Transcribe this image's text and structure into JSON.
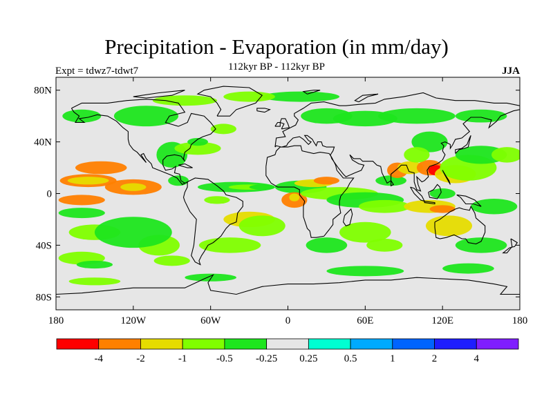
{
  "header": {
    "title": "Precipitation - Evaporation (in mm/day)",
    "subtitle": "112kyr BP - 112kyr BP",
    "left_label": "Expt = tdwz7-tdwt7",
    "right_label": "JJA"
  },
  "map": {
    "projection": "cylindrical-equidistant",
    "lon_range": [
      -180,
      180
    ],
    "lat_range": [
      -90,
      90
    ],
    "background_color": "#e6e6e6",
    "coastline_color": "#000000",
    "lat_ticks": [
      {
        "value": 80,
        "label": "80N"
      },
      {
        "value": 40,
        "label": "40N"
      },
      {
        "value": 0,
        "label": "0"
      },
      {
        "value": -40,
        "label": "40S"
      },
      {
        "value": -80,
        "label": "80S"
      }
    ],
    "lon_ticks": [
      {
        "value": -180,
        "label": "180"
      },
      {
        "value": -120,
        "label": "120W"
      },
      {
        "value": -60,
        "label": "60W"
      },
      {
        "value": 0,
        "label": "0"
      },
      {
        "value": 60,
        "label": "60E"
      },
      {
        "value": 120,
        "label": "120E"
      },
      {
        "value": 180,
        "label": "180"
      }
    ]
  },
  "colorbar": {
    "colors": [
      "#ff0000",
      "#ff8000",
      "#e6dc00",
      "#80ff00",
      "#1ee61e",
      "#e6e6e6",
      "#00ffd2",
      "#00aaff",
      "#0064ff",
      "#1e1eff",
      "#7f1eff"
    ],
    "labels": [
      {
        "boundary": 1,
        "text": "-4"
      },
      {
        "boundary": 2,
        "text": "-2"
      },
      {
        "boundary": 3,
        "text": "-1"
      },
      {
        "boundary": 4,
        "text": "-0.5"
      },
      {
        "boundary": 5,
        "text": "-0.25"
      },
      {
        "boundary": 6,
        "text": "0.25"
      },
      {
        "boundary": 7,
        "text": "0.5"
      },
      {
        "boundary": 8,
        "text": "1"
      },
      {
        "boundary": 9,
        "text": "2"
      },
      {
        "boundary": 10,
        "text": "4"
      }
    ]
  },
  "field": {
    "blobs": [
      {
        "lon": -155,
        "lat": 10,
        "rlon": 22,
        "rlat": 5,
        "level": 1
      },
      {
        "lon": -155,
        "lat": 10,
        "rlon": 16,
        "rlat": 3,
        "level": 2
      },
      {
        "lon": -120,
        "lat": 5,
        "rlon": 22,
        "rlat": 6,
        "level": 1
      },
      {
        "lon": -120,
        "lat": 5,
        "rlon": 10,
        "rlat": 3,
        "level": 2
      },
      {
        "lon": -160,
        "lat": -5,
        "rlon": 18,
        "rlat": 4,
        "level": 1
      },
      {
        "lon": -145,
        "lat": 20,
        "rlon": 20,
        "rlat": 5,
        "level": 1
      },
      {
        "lon": -160,
        "lat": -15,
        "rlon": 18,
        "rlat": 4,
        "level": 4
      },
      {
        "lon": -150,
        "lat": -30,
        "rlon": 20,
        "rlat": 6,
        "level": 3
      },
      {
        "lon": -100,
        "lat": -40,
        "rlon": 16,
        "rlat": 8,
        "level": 3
      },
      {
        "lon": -120,
        "lat": -30,
        "rlon": 30,
        "rlat": 12,
        "level": 4
      },
      {
        "lon": -160,
        "lat": -50,
        "rlon": 18,
        "rlat": 5,
        "level": 3
      },
      {
        "lon": -150,
        "lat": -55,
        "rlon": 14,
        "rlat": 3,
        "level": 4
      },
      {
        "lon": -90,
        "lat": -52,
        "rlon": 14,
        "rlat": 4,
        "level": 3
      },
      {
        "lon": -90,
        "lat": 30,
        "rlon": 12,
        "rlat": 10,
        "level": 4
      },
      {
        "lon": -70,
        "lat": 35,
        "rlon": 18,
        "rlat": 5,
        "level": 3
      },
      {
        "lon": -70,
        "lat": 40,
        "rlon": 8,
        "rlat": 3,
        "level": 4
      },
      {
        "lon": -50,
        "lat": 50,
        "rlon": 10,
        "rlat": 4,
        "level": 3
      },
      {
        "lon": -85,
        "lat": 10,
        "rlon": 8,
        "rlat": 4,
        "level": 4
      },
      {
        "lon": -40,
        "lat": 5,
        "rlon": 30,
        "rlat": 4,
        "level": 4
      },
      {
        "lon": -30,
        "lat": 5,
        "rlon": 16,
        "rlat": 2,
        "level": 3
      },
      {
        "lon": -20,
        "lat": 5,
        "rlon": 10,
        "rlat": 2,
        "level": 4
      },
      {
        "lon": -55,
        "lat": -5,
        "rlon": 10,
        "rlat": 3,
        "level": 3
      },
      {
        "lon": -30,
        "lat": -20,
        "rlon": 20,
        "rlat": 6,
        "level": 2
      },
      {
        "lon": -20,
        "lat": -25,
        "rlon": 18,
        "rlat": 8,
        "level": 3
      },
      {
        "lon": -45,
        "lat": -40,
        "rlon": 24,
        "rlat": 6,
        "level": 3
      },
      {
        "lon": 10,
        "lat": 5,
        "rlon": 20,
        "rlat": 5,
        "level": 4
      },
      {
        "lon": 20,
        "lat": 8,
        "rlon": 15,
        "rlat": 3,
        "level": 2
      },
      {
        "lon": 30,
        "lat": 10,
        "rlon": 10,
        "rlat": 3,
        "level": 1
      },
      {
        "lon": 5,
        "lat": -5,
        "rlon": 10,
        "rlat": 6,
        "level": 1
      },
      {
        "lon": 5,
        "lat": -3,
        "rlon": 4,
        "rlat": 3,
        "level": 2
      },
      {
        "lon": 40,
        "lat": 0,
        "rlon": 30,
        "rlat": 5,
        "level": 3
      },
      {
        "lon": 60,
        "lat": -5,
        "rlon": 30,
        "rlat": 6,
        "level": 4
      },
      {
        "lon": 75,
        "lat": -10,
        "rlon": 20,
        "rlat": 5,
        "level": 3
      },
      {
        "lon": 60,
        "lat": -30,
        "rlon": 20,
        "rlat": 8,
        "level": 3
      },
      {
        "lon": 30,
        "lat": -40,
        "rlon": 16,
        "rlat": 6,
        "level": 4
      },
      {
        "lon": 75,
        "lat": -40,
        "rlon": 14,
        "rlat": 5,
        "level": 3
      },
      {
        "lon": 80,
        "lat": 10,
        "rlon": 12,
        "rlat": 4,
        "level": 4
      },
      {
        "lon": 85,
        "lat": 18,
        "rlon": 8,
        "rlat": 6,
        "level": 1
      },
      {
        "lon": 95,
        "lat": 20,
        "rlon": 10,
        "rlat": 5,
        "level": 2
      },
      {
        "lon": 110,
        "lat": 20,
        "rlon": 10,
        "rlat": 6,
        "level": 1
      },
      {
        "lon": 115,
        "lat": 18,
        "rlon": 6,
        "rlat": 4,
        "level": 0
      },
      {
        "lon": 130,
        "lat": 15,
        "rlon": 16,
        "rlat": 7,
        "level": 2
      },
      {
        "lon": 140,
        "lat": 20,
        "rlon": 22,
        "rlat": 10,
        "level": 3
      },
      {
        "lon": 150,
        "lat": 30,
        "rlon": 20,
        "rlat": 7,
        "level": 4
      },
      {
        "lon": 170,
        "lat": 30,
        "rlon": 12,
        "rlat": 6,
        "level": 3
      },
      {
        "lon": 110,
        "lat": 40,
        "rlon": 14,
        "rlat": 8,
        "level": 4
      },
      {
        "lon": 100,
        "lat": 30,
        "rlon": 10,
        "rlat": 6,
        "level": 3
      },
      {
        "lon": 120,
        "lat": 0,
        "rlon": 10,
        "rlat": 4,
        "level": 4
      },
      {
        "lon": 110,
        "lat": -10,
        "rlon": 20,
        "rlat": 5,
        "level": 2
      },
      {
        "lon": 120,
        "lat": -12,
        "rlon": 10,
        "rlat": 3,
        "level": 1
      },
      {
        "lon": 125,
        "lat": -25,
        "rlon": 18,
        "rlat": 8,
        "level": 2
      },
      {
        "lon": 160,
        "lat": -10,
        "rlon": 18,
        "rlat": 6,
        "level": 4
      },
      {
        "lon": 150,
        "lat": -40,
        "rlon": 20,
        "rlat": 6,
        "level": 4
      },
      {
        "lon": 60,
        "lat": 58,
        "rlon": 25,
        "rlat": 6,
        "level": 4
      },
      {
        "lon": 100,
        "lat": 60,
        "rlon": 30,
        "rlat": 6,
        "level": 4
      },
      {
        "lon": 150,
        "lat": 60,
        "rlon": 20,
        "rlat": 5,
        "level": 4
      },
      {
        "lon": -110,
        "lat": 60,
        "rlon": 25,
        "rlat": 8,
        "level": 4
      },
      {
        "lon": -160,
        "lat": 60,
        "rlon": 15,
        "rlat": 5,
        "level": 4
      },
      {
        "lon": 30,
        "lat": 60,
        "rlon": 20,
        "rlat": 6,
        "level": 4
      },
      {
        "lon": 10,
        "lat": 75,
        "rlon": 30,
        "rlat": 4,
        "level": 4
      },
      {
        "lon": -30,
        "lat": 75,
        "rlon": 20,
        "rlat": 4,
        "level": 3
      },
      {
        "lon": -80,
        "lat": 72,
        "rlon": 25,
        "rlat": 4,
        "level": 3
      },
      {
        "lon": -150,
        "lat": -68,
        "rlon": 20,
        "rlat": 3,
        "level": 3
      },
      {
        "lon": 60,
        "lat": -60,
        "rlon": 30,
        "rlat": 4,
        "level": 4
      },
      {
        "lon": 140,
        "lat": -58,
        "rlon": 20,
        "rlat": 4,
        "level": 4
      },
      {
        "lon": -60,
        "lat": -65,
        "rlon": 20,
        "rlat": 3,
        "level": 4
      }
    ]
  }
}
